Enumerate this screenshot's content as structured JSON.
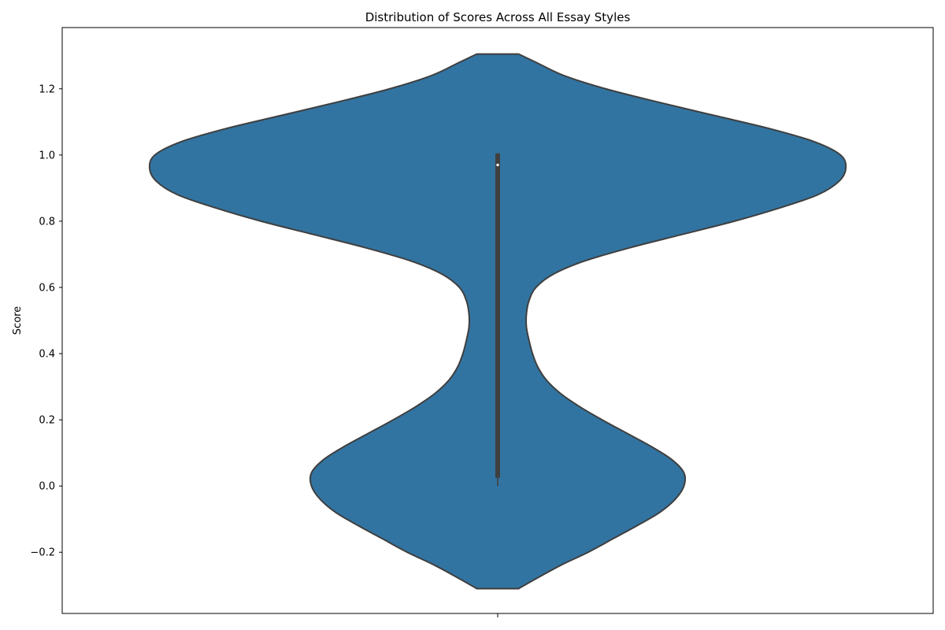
{
  "chart_data": {
    "type": "violin",
    "title": "Distribution of Scores Across All Essay Styles",
    "xlabel": "",
    "ylabel": "Score",
    "ylim": [
      -0.385,
      1.385
    ],
    "yticks": [
      -0.2,
      0.0,
      0.2,
      0.4,
      0.6,
      0.8,
      1.0,
      1.2
    ],
    "ytick_labels": [
      "−0.2",
      "0.0",
      "0.2",
      "0.4",
      "0.6",
      "0.8",
      "1.0",
      "1.2"
    ],
    "grid": false,
    "legend": "none",
    "colors": {
      "fill": "#3274a1",
      "outline": "#3f3f3f",
      "box": "#3f3f3f",
      "median": "#ffffff",
      "axis": "#000000"
    },
    "series": [
      {
        "density_profile": [
          [
            -0.31,
            0.12
          ],
          [
            -0.28,
            0.22
          ],
          [
            -0.24,
            0.36
          ],
          [
            -0.2,
            0.52
          ],
          [
            -0.16,
            0.66
          ],
          [
            -0.12,
            0.8
          ],
          [
            -0.08,
            0.93
          ],
          [
            -0.04,
            1.02
          ],
          [
            0.0,
            1.07
          ],
          [
            0.04,
            1.07
          ],
          [
            0.08,
            1.0
          ],
          [
            0.12,
            0.88
          ],
          [
            0.16,
            0.74
          ],
          [
            0.2,
            0.6
          ],
          [
            0.24,
            0.47
          ],
          [
            0.28,
            0.36
          ],
          [
            0.32,
            0.28
          ],
          [
            0.36,
            0.23
          ],
          [
            0.4,
            0.2
          ],
          [
            0.44,
            0.18
          ],
          [
            0.48,
            0.165
          ],
          [
            0.52,
            0.165
          ],
          [
            0.56,
            0.18
          ],
          [
            0.6,
            0.22
          ],
          [
            0.64,
            0.32
          ],
          [
            0.68,
            0.5
          ],
          [
            0.72,
            0.76
          ],
          [
            0.76,
            1.06
          ],
          [
            0.8,
            1.36
          ],
          [
            0.84,
            1.62
          ],
          [
            0.88,
            1.84
          ],
          [
            0.92,
            1.96
          ],
          [
            0.96,
            2.0
          ],
          [
            1.0,
            1.97
          ],
          [
            1.04,
            1.82
          ],
          [
            1.08,
            1.56
          ],
          [
            1.12,
            1.24
          ],
          [
            1.16,
            0.92
          ],
          [
            1.2,
            0.62
          ],
          [
            1.24,
            0.38
          ],
          [
            1.28,
            0.22
          ],
          [
            1.305,
            0.12
          ]
        ],
        "box": {
          "q1": 0.025,
          "median": 0.97,
          "q3": 1.005,
          "whisker_low": 0.0,
          "whisker_high": 1.005
        }
      }
    ]
  }
}
